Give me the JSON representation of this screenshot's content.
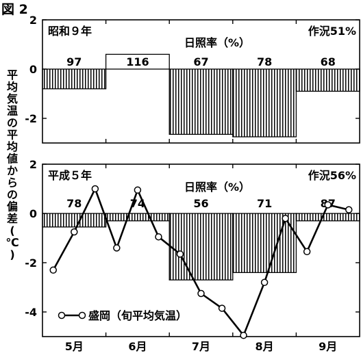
{
  "figure_label": "図 2",
  "ylabel": "平均気温の平均値からの偏差(℃)",
  "chart_data": [
    {
      "type": "bar",
      "panel_label": "昭和９年",
      "subtitle": "日照率（%）",
      "yield_label": "作況51%",
      "ylim": [
        -3,
        2
      ],
      "yticks": [
        2,
        0,
        -2
      ],
      "x_range": [
        0,
        5
      ],
      "bars": [
        {
          "x_start": 0,
          "x_end": 1,
          "value": -0.8,
          "sunshine": "97"
        },
        {
          "x_start": 1,
          "x_end": 2,
          "value": 0.6,
          "sunshine": "116"
        },
        {
          "x_start": 2,
          "x_end": 3,
          "value": -2.65,
          "sunshine": "67"
        },
        {
          "x_start": 3,
          "x_end": 4,
          "value": -2.75,
          "sunshine": "78"
        },
        {
          "x_start": 4,
          "x_end": 5,
          "value": -0.9,
          "sunshine": "68"
        }
      ]
    },
    {
      "type": "bar+line",
      "panel_label": "平成５年",
      "subtitle": "日照率（%）",
      "yield_label": "作況56%",
      "ylim": [
        -5,
        2
      ],
      "yticks": [
        2,
        0,
        -2,
        -4
      ],
      "x_range": [
        0,
        5
      ],
      "x_tick_labels": [
        "5月",
        "6月",
        "7月",
        "8月",
        "9月"
      ],
      "bars": [
        {
          "x_start": 0,
          "x_end": 1,
          "value": -0.55,
          "sunshine": "78"
        },
        {
          "x_start": 1,
          "x_end": 2,
          "value": -0.3,
          "sunshine": "74"
        },
        {
          "x_start": 2,
          "x_end": 3,
          "value": -2.7,
          "sunshine": "56"
        },
        {
          "x_start": 3,
          "x_end": 4,
          "value": -2.4,
          "sunshine": "71"
        },
        {
          "x_start": 4,
          "x_end": 5,
          "value": -0.3,
          "sunshine": "87"
        }
      ],
      "series": [
        {
          "name": "盛岡（旬平均気温）",
          "x": [
            0.17,
            0.5,
            0.83,
            1.17,
            1.5,
            1.83,
            2.17,
            2.5,
            2.83,
            3.17,
            3.5,
            3.83,
            4.17,
            4.5,
            4.83
          ],
          "values": [
            -2.3,
            -0.75,
            1.0,
            -1.4,
            0.95,
            -0.95,
            -1.65,
            -3.25,
            -3.85,
            -4.95,
            -2.8,
            -0.2,
            -1.55,
            0.35,
            0.15
          ]
        }
      ]
    }
  ]
}
